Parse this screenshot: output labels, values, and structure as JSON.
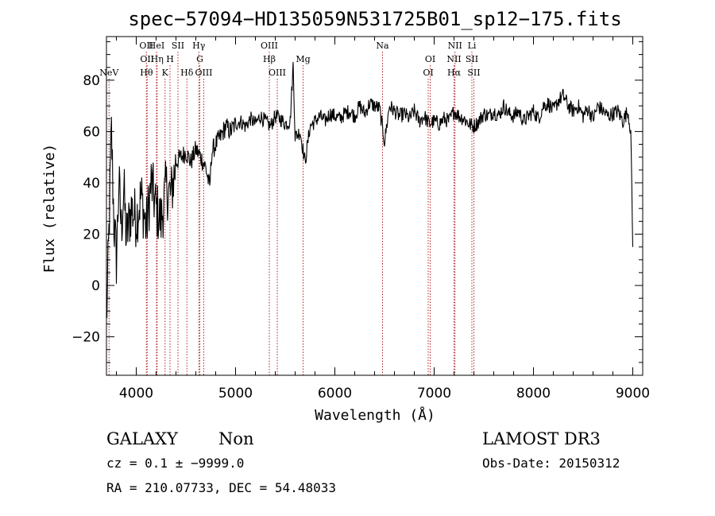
{
  "footer": {
    "class_label": "GALAXY",
    "subclass_label": "Non",
    "survey": "LAMOST DR3",
    "cz_line": "cz = 0.1 ± −9999.0",
    "obs_date": "Obs-Date: 20150312",
    "coords": "RA = 210.07733, DEC =  54.48033"
  },
  "colors": {
    "spectrum": "#000000",
    "line_marker": "#b22222",
    "axis": "#000000"
  },
  "chart_data": {
    "type": "line",
    "title": "spec−57094−HD135059N531725B01_sp12−175.fits",
    "xlabel": "Wavelength (Å)",
    "ylabel": "Flux (relative)",
    "xlim": [
      3700,
      9100
    ],
    "ylim": [
      -35,
      97
    ],
    "xticks": [
      4000,
      5000,
      6000,
      7000,
      8000,
      9000
    ],
    "xtick_labels": [
      "4000",
      "5000",
      "6000",
      "7000",
      "8000",
      "9000"
    ],
    "yticks": [
      -20,
      0,
      20,
      40,
      60,
      80
    ],
    "ytick_labels": [
      "−20",
      "0",
      "20",
      "40",
      "60",
      "80"
    ],
    "series": [
      {
        "name": "flux",
        "x": [
          3700,
          3725,
          3750,
          3775,
          3800,
          3825,
          3850,
          3875,
          3900,
          3950,
          4000,
          4050,
          4100,
          4150,
          4200,
          4250,
          4300,
          4350,
          4400,
          4450,
          4500,
          4550,
          4600,
          4650,
          4700,
          4740,
          4760,
          4800,
          4850,
          4900,
          4950,
          5000,
          5050,
          5100,
          5150,
          5200,
          5250,
          5300,
          5350,
          5400,
          5450,
          5500,
          5550,
          5580,
          5600,
          5650,
          5700,
          5750,
          5800,
          5850,
          5900,
          5950,
          6000,
          6050,
          6100,
          6150,
          6200,
          6250,
          6300,
          6350,
          6400,
          6450,
          6500,
          6550,
          6600,
          6650,
          6700,
          6750,
          6800,
          6850,
          6900,
          6950,
          7000,
          7050,
          7100,
          7150,
          7200,
          7250,
          7300,
          7350,
          7400,
          7450,
          7500,
          7550,
          7600,
          7650,
          7700,
          7750,
          7800,
          7850,
          7900,
          7950,
          8000,
          8050,
          8100,
          8150,
          8200,
          8250,
          8300,
          8350,
          8400,
          8450,
          8500,
          8550,
          8600,
          8650,
          8700,
          8750,
          8800,
          8850,
          8900,
          8950,
          8980,
          9000
        ],
        "values": [
          -15,
          20,
          60,
          25,
          10,
          40,
          22,
          38,
          18,
          30,
          26,
          35,
          22,
          40,
          30,
          25,
          38,
          35,
          48,
          50,
          52,
          48,
          53,
          50,
          46,
          38,
          52,
          55,
          58,
          62,
          60,
          63,
          64,
          62,
          65,
          63,
          66,
          64,
          62,
          66,
          65,
          63,
          64,
          86,
          58,
          60,
          48,
          62,
          64,
          66,
          64,
          67,
          66,
          65,
          67,
          68,
          66,
          70,
          67,
          71,
          70,
          69,
          56,
          70,
          68,
          66,
          67,
          65,
          68,
          64,
          66,
          63,
          64,
          63,
          65,
          64,
          68,
          66,
          65,
          63,
          62,
          64,
          67,
          66,
          68,
          66,
          70,
          67,
          66,
          68,
          64,
          66,
          68,
          65,
          70,
          71,
          68,
          72,
          74,
          70,
          68,
          70,
          66,
          69,
          65,
          70,
          68,
          66,
          67,
          68,
          64,
          68,
          60,
          15
        ]
      }
    ],
    "line_markers": [
      {
        "wavelength": 3726,
        "label": "NeV",
        "row": 3
      },
      {
        "wavelength": 4102,
        "label": "OII",
        "row": 1
      },
      {
        "wavelength": 4110,
        "label": "OII",
        "row": 2
      },
      {
        "wavelength": 4103,
        "label": "Hθ",
        "row": 3
      },
      {
        "wavelength": 4204,
        "label": "HeI",
        "row": 1
      },
      {
        "wavelength": 4210,
        "label": "Hη",
        "row": 2
      },
      {
        "wavelength": 4290,
        "label": "K",
        "row": 3
      },
      {
        "wavelength": 4340,
        "label": "H",
        "row": 2
      },
      {
        "wavelength": 4420,
        "label": "SII",
        "row": 1
      },
      {
        "wavelength": 4510,
        "label": "Hδ",
        "row": 3
      },
      {
        "wavelength": 4630,
        "label": "Hγ",
        "row": 1
      },
      {
        "wavelength": 4640,
        "label": "G",
        "row": 2
      },
      {
        "wavelength": 4680,
        "label": "OIII",
        "row": 3
      },
      {
        "wavelength": 5340,
        "label": "OIII",
        "row": 1
      },
      {
        "wavelength": 5340,
        "label": "Hβ",
        "row": 2
      },
      {
        "wavelength": 5420,
        "label": "OIII",
        "row": 3
      },
      {
        "wavelength": 5680,
        "label": "Mg",
        "row": 2
      },
      {
        "wavelength": 6480,
        "label": "Na",
        "row": 1
      },
      {
        "wavelength": 6940,
        "label": "OI",
        "row": 3
      },
      {
        "wavelength": 6960,
        "label": "OI",
        "row": 2
      },
      {
        "wavelength": 7210,
        "label": "NII",
        "row": 1
      },
      {
        "wavelength": 7200,
        "label": "NII",
        "row": 2
      },
      {
        "wavelength": 7200,
        "label": "Hα",
        "row": 3
      },
      {
        "wavelength": 7380,
        "label": "Li",
        "row": 1
      },
      {
        "wavelength": 7380,
        "label": "SII",
        "row": 2
      },
      {
        "wavelength": 7400,
        "label": "SII",
        "row": 3
      }
    ]
  }
}
